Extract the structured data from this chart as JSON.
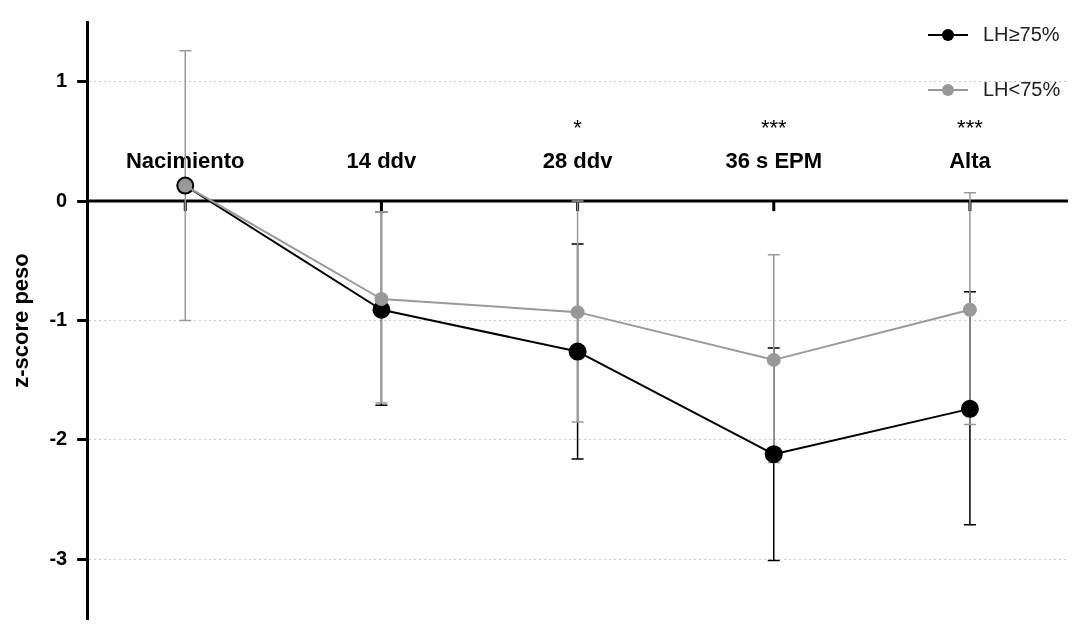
{
  "chart_data": {
    "type": "line",
    "ylabel": "z-score peso",
    "categories": [
      "Nacimiento",
      "14 ddv",
      "28 ddv",
      "36 s EPM",
      "Alta"
    ],
    "series": [
      {
        "name": "LH≥75%",
        "color": "#000000",
        "values": [
          0.13,
          -0.91,
          -1.26,
          -2.12,
          -1.74
        ],
        "errors": [
          null,
          [
            -1.71,
            -0.09
          ],
          [
            -2.16,
            -0.36
          ],
          [
            -3.01,
            -1.23
          ],
          [
            -2.71,
            -0.76
          ]
        ]
      },
      {
        "name": "LH<75%",
        "color": "#999999",
        "values": [
          0.13,
          -0.82,
          -0.93,
          -1.33,
          -0.91
        ],
        "errors": [
          [
            -1.0,
            1.26
          ],
          [
            -1.69,
            -0.09
          ],
          [
            -1.85,
            0.0
          ],
          [
            -2.19,
            -0.45
          ],
          [
            -1.87,
            0.07
          ]
        ]
      }
    ],
    "annotations": [
      "*",
      "***",
      "***"
    ],
    "ylim": [
      -3.5,
      1.5
    ],
    "yticks": [
      -3,
      -2,
      -1,
      0,
      1
    ],
    "grid": "y",
    "legend": "top right",
    "marker": "circle",
    "line_style": "solid"
  }
}
